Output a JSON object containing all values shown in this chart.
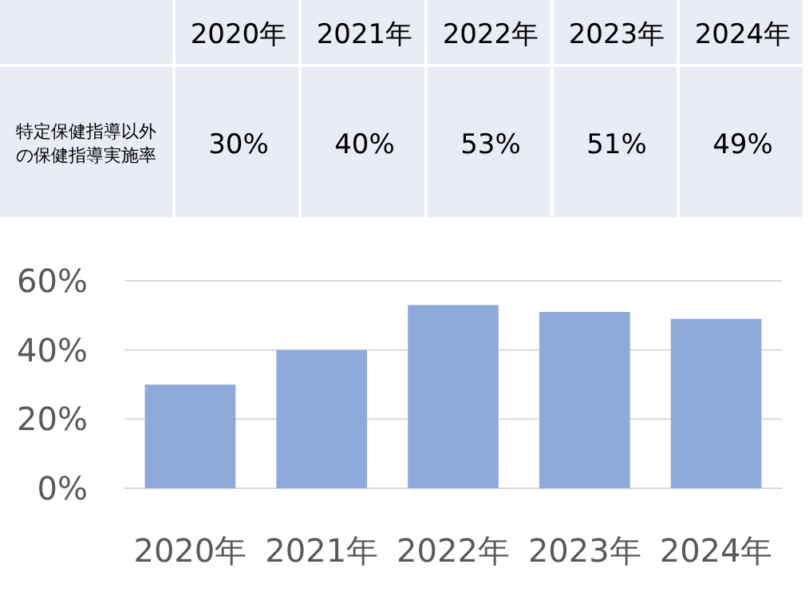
{
  "chart_data": {
    "type": "bar",
    "categories": [
      "2020年",
      "2021年",
      "2022年",
      "2023年",
      "2024年"
    ],
    "series": [
      {
        "name": "特定保健指導以外の保健指導実施率",
        "color": "#8eaadb",
        "values": [
          30,
          40,
          53,
          51,
          49
        ],
        "value_labels": [
          "30%",
          "40%",
          "53%",
          "51%",
          "49%"
        ]
      }
    ],
    "ylim": [
      0,
      60
    ],
    "yticks": [
      {
        "value": 0,
        "label": "0%"
      },
      {
        "value": 20,
        "label": "20%"
      },
      {
        "value": 40,
        "label": "40%"
      },
      {
        "value": 60,
        "label": "60%"
      }
    ],
    "grid": "y"
  }
}
